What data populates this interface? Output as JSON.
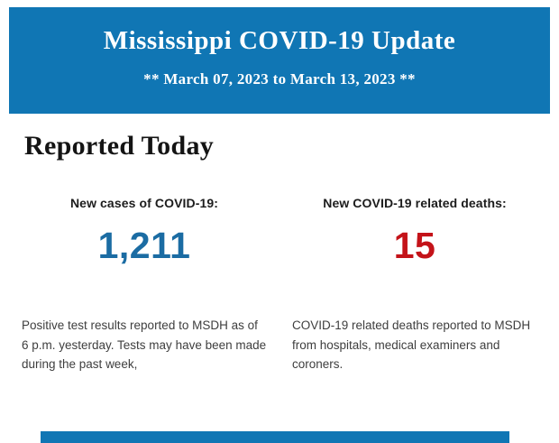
{
  "header": {
    "title": "Mississippi COVID-19 Update",
    "date_range": "** March 07, 2023 to March 13, 2023 **",
    "background_color": "#1076B4",
    "text_color": "#FFFFFF"
  },
  "main": {
    "section_title": "Reported Today",
    "stats": [
      {
        "label": "New cases of COVID-19:",
        "value": "1,211",
        "value_color": "#1B6CA3",
        "description": "Positive test results reported to MSDH as of 6 p.m. yesterday. Tests may have been made during the past week,"
      },
      {
        "label": "New COVID-19 related deaths:",
        "value": "15",
        "value_color": "#C41319",
        "description": "COVID-19 related deaths reported to MSDH from hospitals, medical examiners and coroners."
      }
    ]
  },
  "footer": {
    "next_section_bar_color": "#1076B4"
  }
}
